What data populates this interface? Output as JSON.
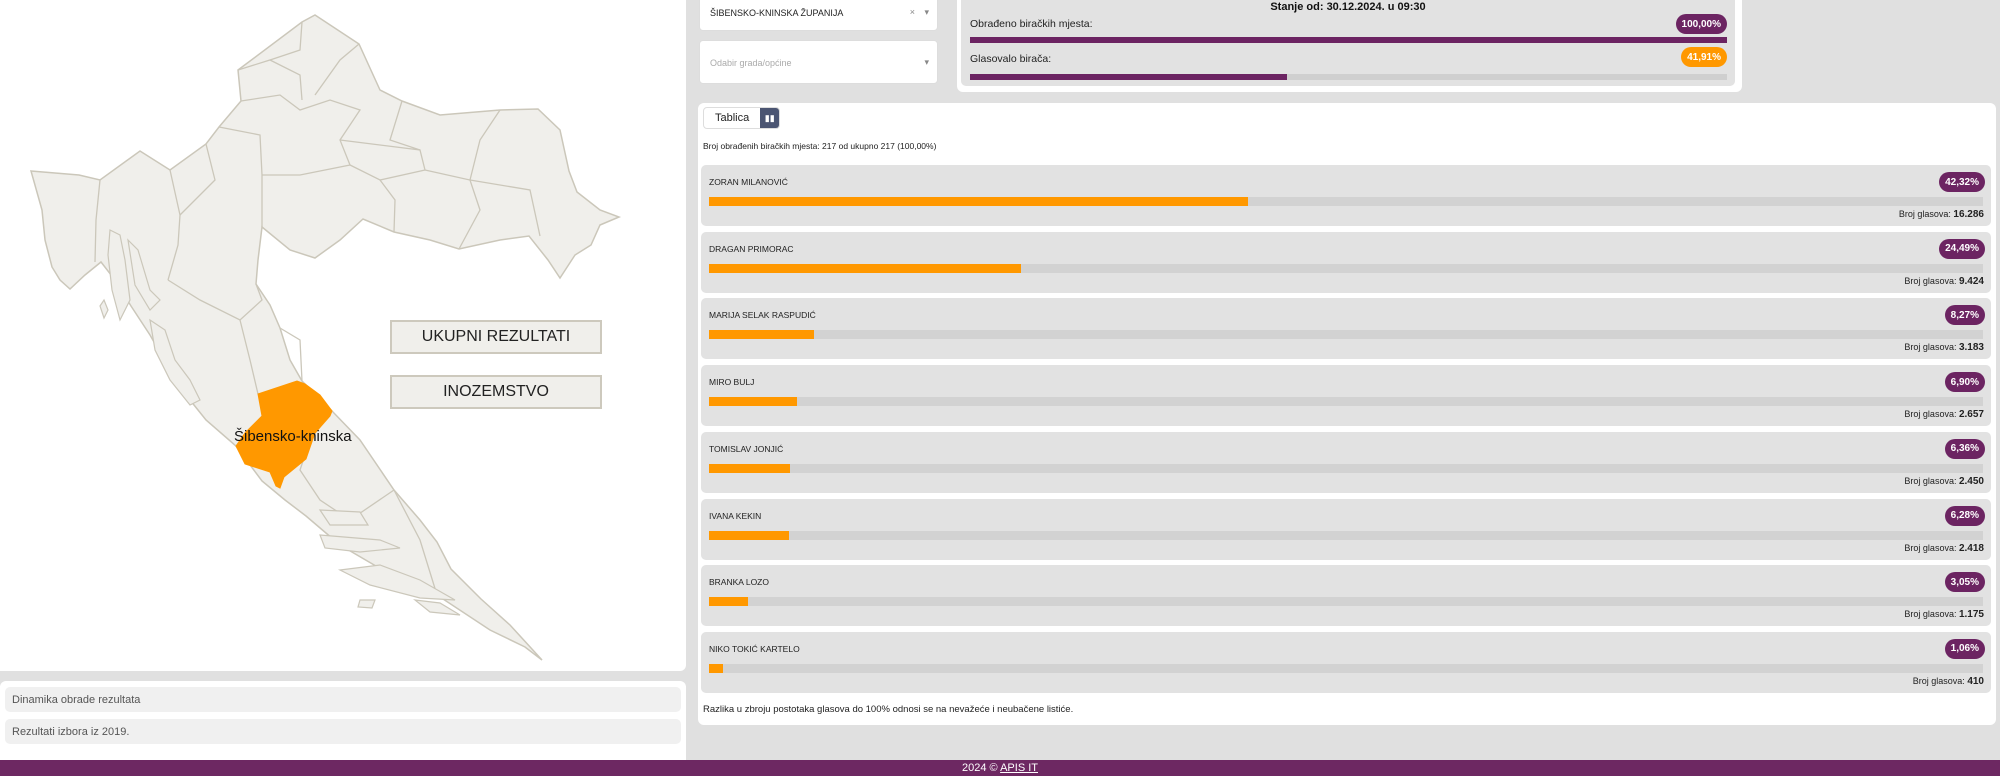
{
  "map": {
    "selected_region_label": "Šibensko-kninska",
    "buttons": {
      "total": "UKUPNI REZULTATI",
      "abroad": "INOZEMSTVO"
    },
    "colors": {
      "land": "#f0efeb",
      "border": "#cbc7ba",
      "selected": "#ff9800"
    }
  },
  "links": [
    "Dinamika obrade rezultata",
    "Rezultati izbora iz 2019."
  ],
  "filters": {
    "county_value": "ŠIBENSKO-KNINSKA ŽUPANIJA",
    "clear_icon": "×",
    "city_placeholder": "Odabir grada/općine"
  },
  "stats": {
    "timestamp": "Stanje od: 30.12.2024. u 09:30",
    "processed_label": "Obrađeno biračkih mjesta:",
    "processed_value": "100,00%",
    "processed_percent": 100,
    "turnout_label": "Glasovalo birača:",
    "turnout_value": "41,91%",
    "turnout_percent": 41.91
  },
  "results": {
    "view_toggle_label": "Tablica",
    "view_chart_icon": "bar-chart-icon",
    "summary": "Broj obrađenih biračkih mjesta: 217 od ukupno 217 (100,00%)",
    "votes_label": "Broj glasova:",
    "candidates": [
      {
        "name": "ZORAN MILANOVIĆ",
        "percent_label": "42,32%",
        "percent": 42.32,
        "votes": "16.286"
      },
      {
        "name": "DRAGAN PRIMORAC",
        "percent_label": "24,49%",
        "percent": 24.49,
        "votes": "9.424"
      },
      {
        "name": "MARIJA SELAK RASPUDIĆ",
        "percent_label": "8,27%",
        "percent": 8.27,
        "votes": "3.183"
      },
      {
        "name": "MIRO BULJ",
        "percent_label": "6,90%",
        "percent": 6.9,
        "votes": "2.657"
      },
      {
        "name": "TOMISLAV JONJIĆ",
        "percent_label": "6,36%",
        "percent": 6.36,
        "votes": "2.450"
      },
      {
        "name": "IVANA KEKIN",
        "percent_label": "6,28%",
        "percent": 6.28,
        "votes": "2.418"
      },
      {
        "name": "BRANKA LOZO",
        "percent_label": "3,05%",
        "percent": 3.05,
        "votes": "1.175"
      },
      {
        "name": "NIKO TOKIĆ KARTELO",
        "percent_label": "1,06%",
        "percent": 1.06,
        "votes": "410"
      }
    ],
    "footnote": "Razlika u zbroju postotaka glasova do 100% odnosi se na nevažeće i neubačene listiće."
  },
  "footer": {
    "year": "2024 ©",
    "link": "APIS IT"
  },
  "colors": {
    "purple": "#6c2462",
    "orange": "#ff9800"
  }
}
